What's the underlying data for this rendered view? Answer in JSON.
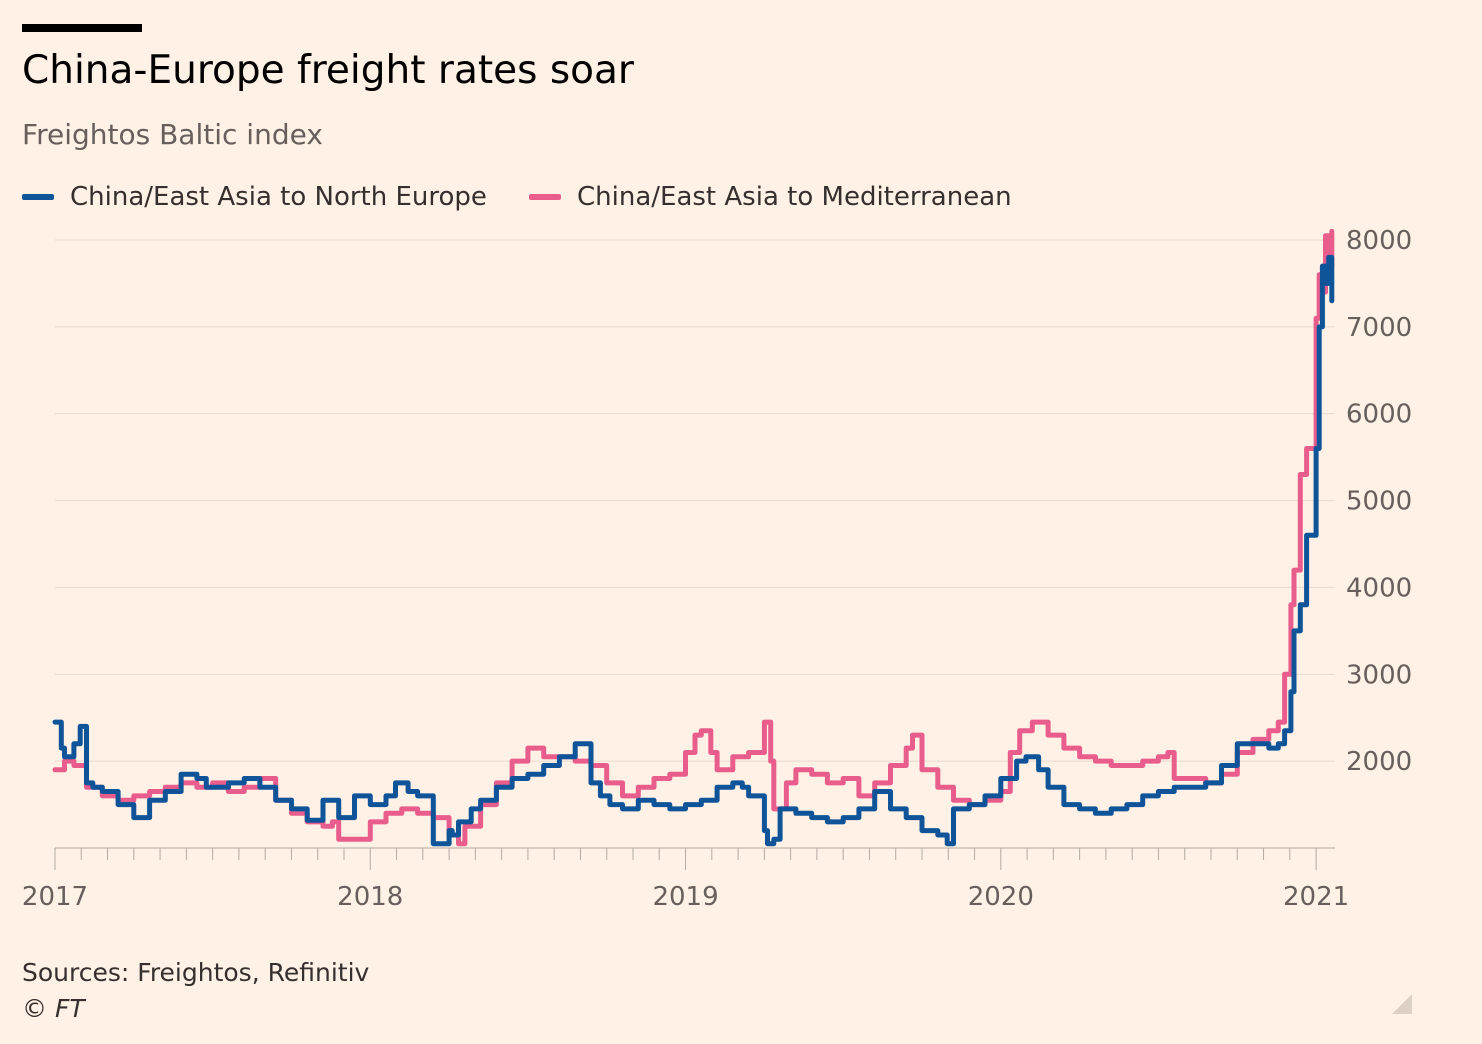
{
  "header": {
    "title": "China-Europe freight rates soar",
    "subtitle": "Freightos Baltic index"
  },
  "legend": {
    "series1": "China/East Asia to North Europe",
    "series2": "China/East Asia to Mediterranean"
  },
  "footer": {
    "sources": "Sources: Freightos, Refinitiv",
    "copyright": "© FT"
  },
  "colors": {
    "background": "#fff1e5",
    "north_europe": "#0f5499",
    "mediterranean": "#e95d8c",
    "grid": "#e6d9ce",
    "axis_text": "#66605c"
  },
  "chart_data": {
    "type": "line",
    "title": "China-Europe freight rates soar",
    "subtitle": "Freightos Baltic index",
    "xlim": [
      2017.0,
      2021.06
    ],
    "ylim": [
      1000,
      8000
    ],
    "y_ticks": [
      2000,
      3000,
      4000,
      5000,
      6000,
      7000,
      8000
    ],
    "x_ticks": [
      2017,
      2018,
      2019,
      2020,
      2021
    ],
    "x_tick_labels": [
      "2017",
      "2018",
      "2019",
      "2020",
      "2021"
    ],
    "grid": true,
    "y_axis_side": "right",
    "legend_position": "top-left",
    "series": [
      {
        "name": "China/East Asia to North Europe",
        "color": "#0f5499",
        "x": [
          2017.0,
          2017.02,
          2017.03,
          2017.06,
          2017.08,
          2017.1,
          2017.12,
          2017.15,
          2017.2,
          2017.25,
          2017.3,
          2017.35,
          2017.4,
          2017.45,
          2017.48,
          2017.55,
          2017.6,
          2017.65,
          2017.7,
          2017.75,
          2017.8,
          2017.85,
          2017.9,
          2017.95,
          2018.0,
          2018.05,
          2018.08,
          2018.12,
          2018.15,
          2018.2,
          2018.25,
          2018.26,
          2018.28,
          2018.32,
          2018.35,
          2018.4,
          2018.45,
          2018.5,
          2018.55,
          2018.6,
          2018.65,
          2018.7,
          2018.73,
          2018.76,
          2018.8,
          2018.85,
          2018.9,
          2018.95,
          2019.0,
          2019.05,
          2019.1,
          2019.15,
          2019.18,
          2019.2,
          2019.25,
          2019.26,
          2019.28,
          2019.3,
          2019.35,
          2019.4,
          2019.45,
          2019.5,
          2019.55,
          2019.6,
          2019.65,
          2019.7,
          2019.75,
          2019.8,
          2019.83,
          2019.85,
          2019.9,
          2019.95,
          2020.0,
          2020.05,
          2020.08,
          2020.12,
          2020.15,
          2020.2,
          2020.25,
          2020.3,
          2020.35,
          2020.4,
          2020.45,
          2020.5,
          2020.55,
          2020.6,
          2020.65,
          2020.7,
          2020.75,
          2020.8,
          2020.85,
          2020.88,
          2020.9,
          2020.92,
          2020.93,
          2020.95,
          2020.97,
          2021.0,
          2021.01,
          2021.02,
          2021.03,
          2021.04,
          2021.05
        ],
        "values": [
          2450,
          2150,
          2050,
          2200,
          2400,
          1750,
          1700,
          1650,
          1500,
          1350,
          1550,
          1650,
          1850,
          1800,
          1700,
          1750,
          1800,
          1700,
          1550,
          1450,
          1320,
          1550,
          1350,
          1600,
          1500,
          1600,
          1750,
          1650,
          1600,
          1050,
          1200,
          1150,
          1300,
          1450,
          1550,
          1700,
          1800,
          1850,
          1950,
          2050,
          2200,
          1750,
          1600,
          1500,
          1450,
          1550,
          1500,
          1450,
          1500,
          1550,
          1700,
          1750,
          1700,
          1600,
          1200,
          1050,
          1100,
          1450,
          1400,
          1350,
          1300,
          1350,
          1450,
          1650,
          1450,
          1350,
          1200,
          1150,
          1050,
          1450,
          1500,
          1600,
          1800,
          2000,
          2050,
          1900,
          1700,
          1500,
          1450,
          1400,
          1450,
          1500,
          1600,
          1650,
          1700,
          1700,
          1750,
          1950,
          2200,
          2200,
          2150,
          2200,
          2350,
          2800,
          3500,
          3800,
          4600,
          5600,
          7000,
          7700,
          7500,
          7800,
          7300
        ]
      },
      {
        "name": "China/East Asia to Mediterranean",
        "color": "#e95d8c",
        "x": [
          2017.0,
          2017.03,
          2017.06,
          2017.1,
          2017.15,
          2017.2,
          2017.25,
          2017.3,
          2017.35,
          2017.4,
          2017.45,
          2017.5,
          2017.55,
          2017.6,
          2017.65,
          2017.7,
          2017.75,
          2017.8,
          2017.85,
          2017.88,
          2017.9,
          2017.95,
          2018.0,
          2018.05,
          2018.1,
          2018.15,
          2018.2,
          2018.25,
          2018.28,
          2018.3,
          2018.35,
          2018.4,
          2018.45,
          2018.5,
          2018.55,
          2018.6,
          2018.65,
          2018.7,
          2018.75,
          2018.8,
          2018.85,
          2018.9,
          2018.95,
          2019.0,
          2019.03,
          2019.05,
          2019.08,
          2019.1,
          2019.15,
          2019.2,
          2019.25,
          2019.27,
          2019.28,
          2019.32,
          2019.35,
          2019.4,
          2019.45,
          2019.5,
          2019.55,
          2019.6,
          2019.65,
          2019.7,
          2019.72,
          2019.75,
          2019.8,
          2019.85,
          2019.9,
          2019.95,
          2020.0,
          2020.03,
          2020.06,
          2020.1,
          2020.15,
          2020.2,
          2020.25,
          2020.3,
          2020.35,
          2020.4,
          2020.45,
          2020.5,
          2020.53,
          2020.55,
          2020.6,
          2020.65,
          2020.7,
          2020.75,
          2020.8,
          2020.85,
          2020.88,
          2020.9,
          2020.92,
          2020.93,
          2020.95,
          2020.97,
          2021.0,
          2021.01,
          2021.02,
          2021.03,
          2021.04,
          2021.05
        ],
        "values": [
          1900,
          2000,
          1950,
          1700,
          1600,
          1550,
          1600,
          1650,
          1700,
          1750,
          1700,
          1750,
          1650,
          1700,
          1800,
          1550,
          1400,
          1300,
          1250,
          1300,
          1100,
          1100,
          1300,
          1400,
          1450,
          1400,
          1350,
          1150,
          1050,
          1250,
          1500,
          1750,
          2000,
          2150,
          2050,
          2050,
          2000,
          1950,
          1750,
          1600,
          1700,
          1800,
          1850,
          2100,
          2300,
          2350,
          2100,
          1900,
          2050,
          2100,
          2450,
          2000,
          1450,
          1750,
          1900,
          1850,
          1750,
          1800,
          1600,
          1750,
          1950,
          2150,
          2300,
          1900,
          1700,
          1550,
          1500,
          1550,
          1650,
          2100,
          2350,
          2450,
          2300,
          2150,
          2050,
          2000,
          1950,
          1950,
          2000,
          2050,
          2100,
          1800,
          1800,
          1750,
          1850,
          2100,
          2250,
          2350,
          2450,
          3000,
          3800,
          4200,
          5300,
          5600,
          7100,
          7600,
          7400,
          8050,
          7700,
          8100
        ]
      }
    ]
  }
}
